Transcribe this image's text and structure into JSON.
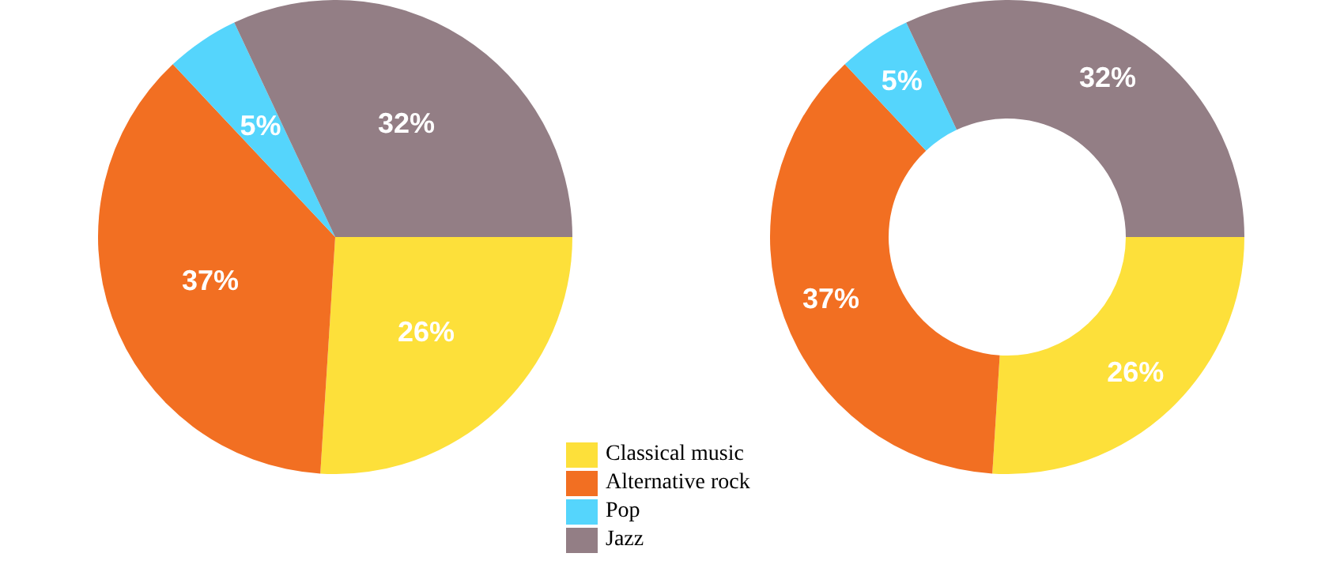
{
  "chart_data": [
    {
      "type": "pie",
      "categories": [
        "Classical music",
        "Alternative rock",
        "Pop",
        "Jazz"
      ],
      "values": [
        26,
        37,
        5,
        32
      ],
      "colors": [
        "#fde03a",
        "#f26f22",
        "#55d5fc",
        "#937e85"
      ],
      "value_labels": [
        "26%",
        "37%",
        "5%",
        "32%"
      ],
      "legend": "bottom"
    },
    {
      "type": "donut",
      "categories": [
        null,
        null,
        null,
        null
      ],
      "values": [
        26,
        37,
        5,
        32
      ],
      "colors": [
        "#fde03a",
        "#f26f22",
        "#55d5fc",
        "#937e85"
      ],
      "value_labels": [
        "26%",
        "37%",
        "5%",
        "32%"
      ]
    }
  ]
}
